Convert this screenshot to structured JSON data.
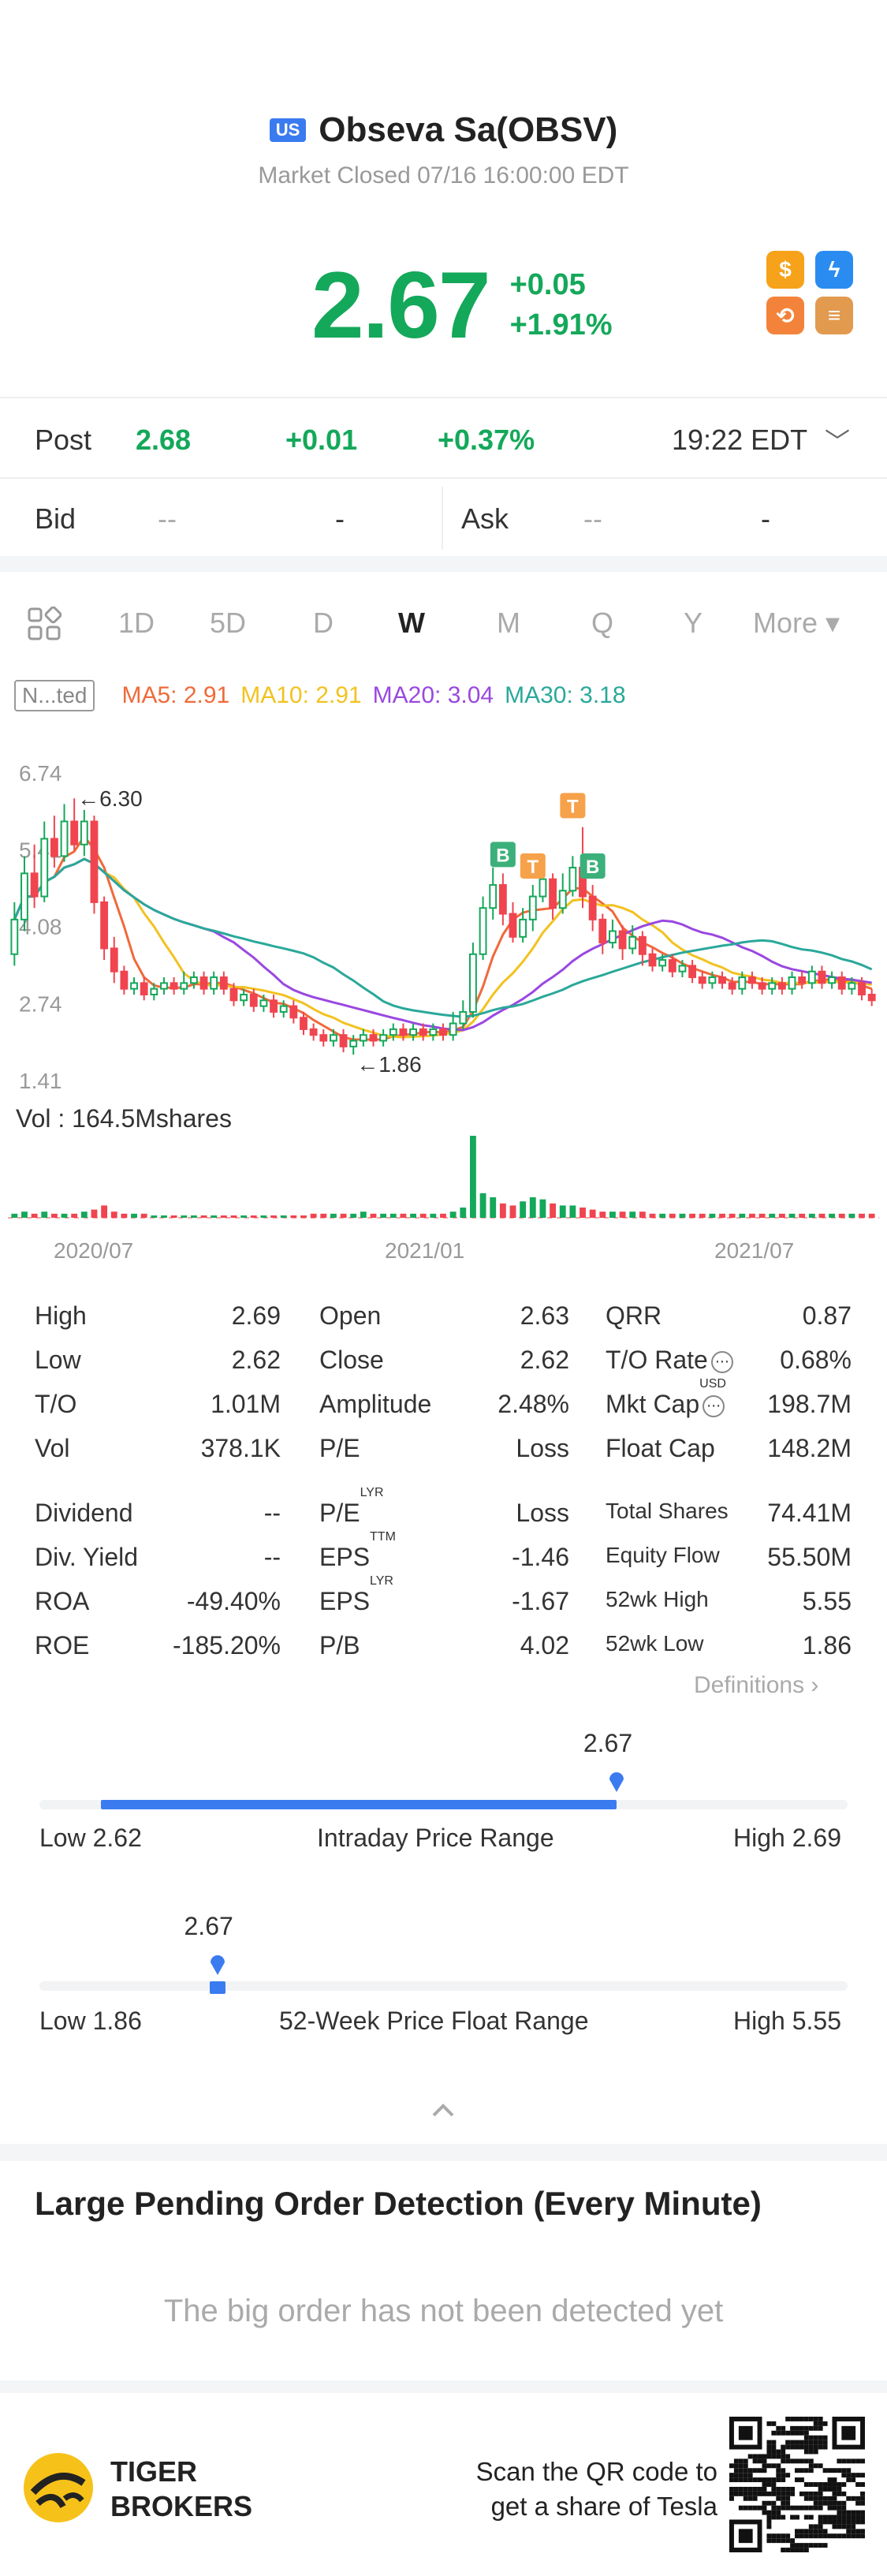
{
  "header": {
    "market_badge": "US",
    "stock_name": "Obseva Sa(OBSV)",
    "market_status": "Market Closed 07/16 16:00:00 EDT",
    "price": "2.67",
    "change": "+0.05",
    "change_pct": "+1.91%",
    "badges": [
      "dollar-icon",
      "lightning-icon",
      "sync-icon",
      "stack-icon"
    ]
  },
  "post": {
    "label": "Post",
    "price": "2.68",
    "change": "+0.01",
    "change_pct": "+0.37%",
    "time": "19:22 EDT"
  },
  "bidask": {
    "bid_label": "Bid",
    "bid_v1": "--",
    "bid_v2": "-",
    "ask_label": "Ask",
    "ask_v1": "--",
    "ask_v2": "-"
  },
  "tabs": {
    "items": [
      "1D",
      "5D",
      "D",
      "W",
      "M",
      "Q",
      "Y"
    ],
    "active": "W",
    "more": "More ▾"
  },
  "ma": {
    "adjust": "N...ted",
    "ma5": "MA5: 2.91",
    "ma10": "MA10: 2.91",
    "ma20": "MA20: 3.04",
    "ma30": "MA30: 3.18"
  },
  "chart_data": {
    "type": "candlestick",
    "y_ticks": [
      "6.74",
      "5.41",
      "4.08",
      "2.74",
      "1.41"
    ],
    "ylim": [
      1.41,
      6.74
    ],
    "x_ticks": [
      "2020/07",
      "2021/01",
      "2021/07"
    ],
    "high_annotation": "6.30",
    "low_annotation": "1.86",
    "volume_label": "Vol  : 164.5Mshares",
    "trade_marks": [
      {
        "label": "B",
        "index": 49
      },
      {
        "label": "T",
        "index": 52
      },
      {
        "label": "T",
        "index": 56
      },
      {
        "label": "B",
        "index": 58
      }
    ],
    "candles": [
      {
        "o": 3.6,
        "c": 4.2,
        "h": 4.5,
        "l": 3.4
      },
      {
        "o": 4.2,
        "c": 5.0,
        "h": 5.3,
        "l": 4.0
      },
      {
        "o": 5.0,
        "c": 4.6,
        "h": 5.5,
        "l": 4.4
      },
      {
        "o": 4.6,
        "c": 5.6,
        "h": 5.9,
        "l": 4.5
      },
      {
        "o": 5.6,
        "c": 5.3,
        "h": 6.0,
        "l": 5.1
      },
      {
        "o": 5.3,
        "c": 5.9,
        "h": 6.2,
        "l": 5.2
      },
      {
        "o": 5.9,
        "c": 5.5,
        "h": 6.3,
        "l": 5.4
      },
      {
        "o": 5.5,
        "c": 5.9,
        "h": 6.1,
        "l": 5.3
      },
      {
        "o": 5.9,
        "c": 4.5,
        "h": 6.0,
        "l": 4.3
      },
      {
        "o": 4.5,
        "c": 3.7,
        "h": 4.6,
        "l": 3.5
      },
      {
        "o": 3.7,
        "c": 3.3,
        "h": 3.9,
        "l": 3.1
      },
      {
        "o": 3.3,
        "c": 3.0,
        "h": 3.4,
        "l": 2.9
      },
      {
        "o": 3.0,
        "c": 3.1,
        "h": 3.2,
        "l": 2.9
      },
      {
        "o": 3.1,
        "c": 2.9,
        "h": 3.2,
        "l": 2.8
      },
      {
        "o": 2.9,
        "c": 3.0,
        "h": 3.1,
        "l": 2.8
      },
      {
        "o": 3.0,
        "c": 3.1,
        "h": 3.2,
        "l": 2.9
      },
      {
        "o": 3.1,
        "c": 3.0,
        "h": 3.2,
        "l": 2.9
      },
      {
        "o": 3.0,
        "c": 3.1,
        "h": 3.3,
        "l": 2.9
      },
      {
        "o": 3.1,
        "c": 3.2,
        "h": 3.3,
        "l": 3.0
      },
      {
        "o": 3.2,
        "c": 3.0,
        "h": 3.3,
        "l": 2.9
      },
      {
        "o": 3.0,
        "c": 3.2,
        "h": 3.3,
        "l": 2.9
      },
      {
        "o": 3.2,
        "c": 3.0,
        "h": 3.3,
        "l": 2.9
      },
      {
        "o": 3.0,
        "c": 2.8,
        "h": 3.1,
        "l": 2.7
      },
      {
        "o": 2.8,
        "c": 2.9,
        "h": 3.0,
        "l": 2.7
      },
      {
        "o": 2.9,
        "c": 2.7,
        "h": 3.0,
        "l": 2.6
      },
      {
        "o": 2.7,
        "c": 2.8,
        "h": 2.9,
        "l": 2.6
      },
      {
        "o": 2.8,
        "c": 2.6,
        "h": 2.9,
        "l": 2.5
      },
      {
        "o": 2.6,
        "c": 2.7,
        "h": 2.8,
        "l": 2.5
      },
      {
        "o": 2.7,
        "c": 2.5,
        "h": 2.8,
        "l": 2.4
      },
      {
        "o": 2.5,
        "c": 2.3,
        "h": 2.6,
        "l": 2.2
      },
      {
        "o": 2.3,
        "c": 2.2,
        "h": 2.4,
        "l": 2.1
      },
      {
        "o": 2.2,
        "c": 2.1,
        "h": 2.3,
        "l": 2.0
      },
      {
        "o": 2.1,
        "c": 2.2,
        "h": 2.3,
        "l": 2.0
      },
      {
        "o": 2.2,
        "c": 2.0,
        "h": 2.3,
        "l": 1.9
      },
      {
        "o": 2.0,
        "c": 2.1,
        "h": 2.2,
        "l": 1.86
      },
      {
        "o": 2.1,
        "c": 2.2,
        "h": 2.3,
        "l": 2.0
      },
      {
        "o": 2.2,
        "c": 2.1,
        "h": 2.3,
        "l": 2.0
      },
      {
        "o": 2.1,
        "c": 2.2,
        "h": 2.3,
        "l": 2.0
      },
      {
        "o": 2.2,
        "c": 2.3,
        "h": 2.4,
        "l": 2.1
      },
      {
        "o": 2.3,
        "c": 2.2,
        "h": 2.4,
        "l": 2.1
      },
      {
        "o": 2.2,
        "c": 2.3,
        "h": 2.4,
        "l": 2.1
      },
      {
        "o": 2.3,
        "c": 2.2,
        "h": 2.4,
        "l": 2.1
      },
      {
        "o": 2.2,
        "c": 2.3,
        "h": 2.4,
        "l": 2.1
      },
      {
        "o": 2.3,
        "c": 2.2,
        "h": 2.4,
        "l": 2.1
      },
      {
        "o": 2.2,
        "c": 2.4,
        "h": 2.6,
        "l": 2.1
      },
      {
        "o": 2.4,
        "c": 2.6,
        "h": 2.8,
        "l": 2.3
      },
      {
        "o": 2.6,
        "c": 3.6,
        "h": 3.8,
        "l": 2.5
      },
      {
        "o": 3.6,
        "c": 4.4,
        "h": 4.6,
        "l": 3.5
      },
      {
        "o": 4.4,
        "c": 4.8,
        "h": 5.1,
        "l": 4.2
      },
      {
        "o": 4.8,
        "c": 4.3,
        "h": 5.0,
        "l": 4.1
      },
      {
        "o": 4.3,
        "c": 3.9,
        "h": 4.5,
        "l": 3.8
      },
      {
        "o": 3.9,
        "c": 4.2,
        "h": 4.4,
        "l": 3.8
      },
      {
        "o": 4.2,
        "c": 4.6,
        "h": 4.8,
        "l": 4.0
      },
      {
        "o": 4.6,
        "c": 4.9,
        "h": 5.2,
        "l": 4.5
      },
      {
        "o": 4.9,
        "c": 4.4,
        "h": 5.0,
        "l": 4.2
      },
      {
        "o": 4.4,
        "c": 4.7,
        "h": 5.0,
        "l": 4.3
      },
      {
        "o": 4.7,
        "c": 5.1,
        "h": 5.3,
        "l": 4.6
      },
      {
        "o": 5.1,
        "c": 4.6,
        "h": 5.8,
        "l": 4.4
      },
      {
        "o": 4.6,
        "c": 4.2,
        "h": 4.8,
        "l": 4.0
      },
      {
        "o": 4.2,
        "c": 3.8,
        "h": 4.3,
        "l": 3.6
      },
      {
        "o": 3.8,
        "c": 4.0,
        "h": 4.2,
        "l": 3.7
      },
      {
        "o": 4.0,
        "c": 3.7,
        "h": 4.1,
        "l": 3.5
      },
      {
        "o": 3.7,
        "c": 3.9,
        "h": 4.1,
        "l": 3.6
      },
      {
        "o": 3.9,
        "c": 3.6,
        "h": 4.0,
        "l": 3.4
      },
      {
        "o": 3.6,
        "c": 3.4,
        "h": 3.7,
        "l": 3.3
      },
      {
        "o": 3.4,
        "c": 3.5,
        "h": 3.6,
        "l": 3.3
      },
      {
        "o": 3.5,
        "c": 3.3,
        "h": 3.6,
        "l": 3.2
      },
      {
        "o": 3.3,
        "c": 3.4,
        "h": 3.5,
        "l": 3.2
      },
      {
        "o": 3.4,
        "c": 3.2,
        "h": 3.5,
        "l": 3.1
      },
      {
        "o": 3.2,
        "c": 3.1,
        "h": 3.3,
        "l": 3.0
      },
      {
        "o": 3.1,
        "c": 3.2,
        "h": 3.3,
        "l": 3.0
      },
      {
        "o": 3.2,
        "c": 3.1,
        "h": 3.3,
        "l": 3.0
      },
      {
        "o": 3.1,
        "c": 3.0,
        "h": 3.2,
        "l": 2.9
      },
      {
        "o": 3.0,
        "c": 3.2,
        "h": 3.3,
        "l": 2.9
      },
      {
        "o": 3.2,
        "c": 3.1,
        "h": 3.3,
        "l": 3.0
      },
      {
        "o": 3.1,
        "c": 3.0,
        "h": 3.2,
        "l": 2.9
      },
      {
        "o": 3.0,
        "c": 3.1,
        "h": 3.2,
        "l": 2.9
      },
      {
        "o": 3.1,
        "c": 3.0,
        "h": 3.2,
        "l": 2.9
      },
      {
        "o": 3.0,
        "c": 3.2,
        "h": 3.3,
        "l": 2.9
      },
      {
        "o": 3.2,
        "c": 3.1,
        "h": 3.3,
        "l": 3.0
      },
      {
        "o": 3.1,
        "c": 3.3,
        "h": 3.4,
        "l": 3.0
      },
      {
        "o": 3.3,
        "c": 3.1,
        "h": 3.4,
        "l": 3.0
      },
      {
        "o": 3.1,
        "c": 3.2,
        "h": 3.3,
        "l": 3.0
      },
      {
        "o": 3.2,
        "c": 3.0,
        "h": 3.3,
        "l": 2.9
      },
      {
        "o": 3.0,
        "c": 3.1,
        "h": 3.2,
        "l": 2.9
      },
      {
        "o": 3.1,
        "c": 2.9,
        "h": 3.2,
        "l": 2.8
      },
      {
        "o": 2.9,
        "c": 2.8,
        "h": 3.0,
        "l": 2.7
      }
    ],
    "volume": [
      2,
      3,
      2,
      3,
      2,
      2,
      2,
      3,
      4,
      6,
      3,
      2,
      2,
      2,
      1,
      1,
      1,
      1,
      1,
      1,
      1,
      1,
      1,
      1,
      1,
      1,
      1,
      1,
      1,
      1,
      2,
      2,
      2,
      2,
      2,
      3,
      2,
      2,
      2,
      2,
      2,
      2,
      2,
      2,
      3,
      5,
      40,
      12,
      10,
      7,
      6,
      8,
      10,
      9,
      7,
      6,
      6,
      5,
      4,
      3,
      3,
      3,
      3,
      3,
      2,
      2,
      2,
      2,
      2,
      2,
      2,
      2,
      2,
      2,
      2,
      2,
      2,
      2,
      2,
      2,
      2,
      2,
      2,
      2,
      2,
      2,
      2
    ]
  },
  "stats": {
    "rows1": [
      {
        "l1": "High",
        "v1": "2.69",
        "l2": "Open",
        "v2": "2.63",
        "l3": "QRR",
        "v3": "0.87"
      },
      {
        "l1": "Low",
        "v1": "2.62",
        "l2": "Close",
        "v2": "2.62",
        "l3": "T/O Rate",
        "v3": "0.68%"
      },
      {
        "l1": "T/O",
        "v1": "1.01M",
        "l2": "Amplitude",
        "v2": "2.48%",
        "l3": "Mkt Cap",
        "v3": "198.7M"
      },
      {
        "l1": "Vol",
        "v1": "378.1K",
        "l2": "P/E",
        "v2": "Loss",
        "l3": "Float Cap",
        "v3": "148.2M"
      }
    ],
    "rows2": [
      {
        "l1": "Dividend",
        "v1": "--",
        "l2": "P/E",
        "v2": "Loss",
        "l3": "Total Shares",
        "v3": "74.41M"
      },
      {
        "l1": "Div. Yield",
        "v1": "--",
        "l2": "EPS",
        "v2": "-1.46",
        "l3": "Equity Flow",
        "v3": "55.50M"
      },
      {
        "l1": "ROA",
        "v1": "-49.40%",
        "l2": "EPS",
        "v2": "-1.67",
        "l3": "52wk High",
        "v3": "5.55"
      },
      {
        "l1": "ROE",
        "v1": "-185.20%",
        "l2": "P/B",
        "v2": "4.02",
        "l3": "52wk Low",
        "v3": "1.86"
      }
    ],
    "sup_usd": "USD",
    "sup_lyr": "LYR",
    "sup_ttm": "TTM",
    "definitions": "Definitions"
  },
  "intraday": {
    "value": "2.67",
    "fraction": 0.714,
    "low": "Low 2.62",
    "title": "Intraday Price Range",
    "high": "High 2.69"
  },
  "week52": {
    "value": "2.67",
    "fraction": 0.22,
    "low": "Low 1.86",
    "title": "52-Week Price Float Range",
    "high": "High 5.55"
  },
  "lpod": {
    "title": "Large Pending Order Detection (Every Minute)",
    "empty": "The big order has not been detected yet"
  },
  "footer": {
    "brand_line1": "TIGER",
    "brand_line2": "BROKERS",
    "scan_line1": "Scan the QR code to",
    "scan_line2": "get a share of Tesla"
  },
  "colors": {
    "up": "#14a85a",
    "down": "#f0444f",
    "accent": "#3b7bf0"
  }
}
